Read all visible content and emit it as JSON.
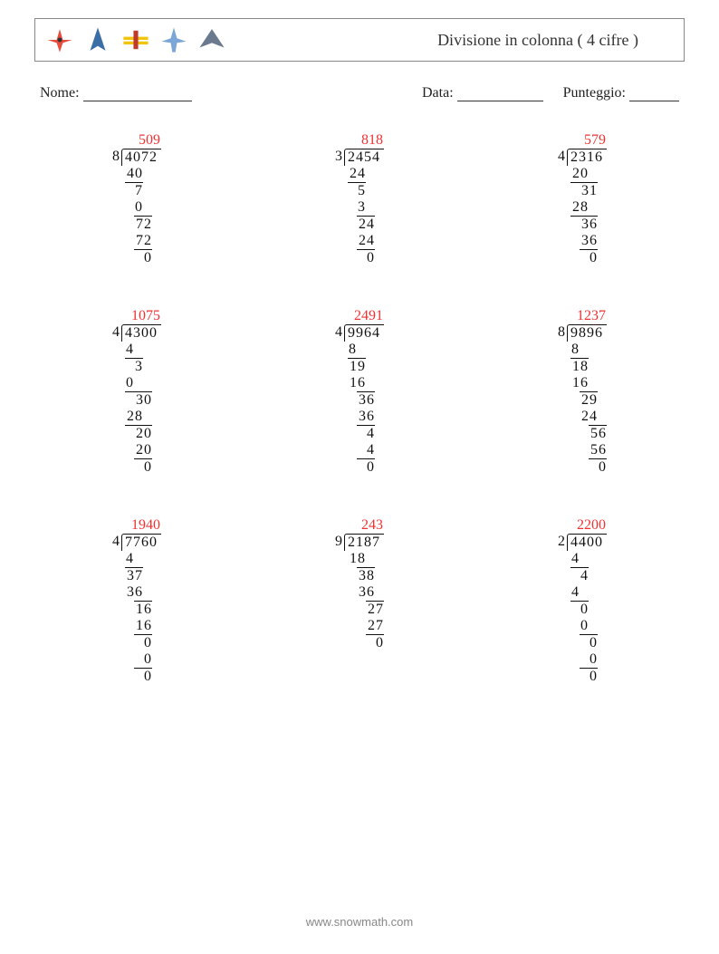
{
  "title": "Divisione in colonna ( 4 cifre )",
  "labels": {
    "name": "Nome:",
    "date": "Data:",
    "score": "Punteggio:"
  },
  "blanks": {
    "name_width": 120,
    "date_width": 95,
    "score_width": 55
  },
  "footer": "www.snowmath.com",
  "style": {
    "quotient_color": "#e33333",
    "text_color": "#111111",
    "border_color": "#888888",
    "font_size": 16,
    "line_height": 18,
    "digit_width": 10
  },
  "planes": [
    {
      "name": "plane-red-prop",
      "color": "#e74c3c"
    },
    {
      "name": "plane-blue-jet",
      "color": "#3b6ea5"
    },
    {
      "name": "plane-yellow-biplane",
      "color": "#f1c40f"
    },
    {
      "name": "plane-blue-airliner",
      "color": "#7aa6d8"
    },
    {
      "name": "plane-grey-stealth",
      "color": "#6b7a8f"
    }
  ],
  "problems": [
    {
      "divisor": "8",
      "dividend": "4072",
      "quotient": "509",
      "steps": [
        {
          "indent": 0,
          "text": "40",
          "underline": false
        },
        {
          "indent": 1,
          "text": "7",
          "underline": true,
          "uwidth": 2
        },
        {
          "indent": 1,
          "text": "0",
          "underline": false
        },
        {
          "indent": 1,
          "text": "72",
          "underline": true,
          "uwidth": 2
        },
        {
          "indent": 1,
          "text": "72",
          "underline": false
        },
        {
          "indent": 2,
          "text": "0",
          "underline": true,
          "uwidth": 2
        }
      ]
    },
    {
      "divisor": "3",
      "dividend": "2454",
      "quotient": "818",
      "steps": [
        {
          "indent": 0,
          "text": "24",
          "underline": false
        },
        {
          "indent": 1,
          "text": "5",
          "underline": true,
          "uwidth": 2
        },
        {
          "indent": 1,
          "text": "3",
          "underline": false
        },
        {
          "indent": 1,
          "text": "24",
          "underline": true,
          "uwidth": 2
        },
        {
          "indent": 1,
          "text": "24",
          "underline": false
        },
        {
          "indent": 2,
          "text": "0",
          "underline": true,
          "uwidth": 2
        }
      ]
    },
    {
      "divisor": "4",
      "dividend": "2316",
      "quotient": "579",
      "steps": [
        {
          "indent": 0,
          "text": "20",
          "underline": false
        },
        {
          "indent": 0,
          "text": "31",
          "underline": true,
          "uwidth": 3
        },
        {
          "indent": 0,
          "text": "28",
          "underline": false
        },
        {
          "indent": 1,
          "text": "36",
          "underline": true,
          "uwidth": 3
        },
        {
          "indent": 1,
          "text": "36",
          "underline": false
        },
        {
          "indent": 2,
          "text": "0",
          "underline": true,
          "uwidth": 2
        }
      ]
    },
    {
      "divisor": "4",
      "dividend": "4300",
      "quotient": "1075",
      "steps": [
        {
          "indent": 0,
          "text": "4",
          "underline": false
        },
        {
          "indent": 0,
          "text": "3",
          "underline": true,
          "uwidth": 2
        },
        {
          "indent": 0,
          "text": "0",
          "underline": false
        },
        {
          "indent": 0,
          "text": "30",
          "underline": true,
          "uwidth": 3
        },
        {
          "indent": 0,
          "text": "28",
          "underline": false
        },
        {
          "indent": 1,
          "text": "20",
          "underline": true,
          "uwidth": 3
        },
        {
          "indent": 1,
          "text": "20",
          "underline": false
        },
        {
          "indent": 2,
          "text": "0",
          "underline": true,
          "uwidth": 2
        }
      ]
    },
    {
      "divisor": "4",
      "dividend": "9964",
      "quotient": "2491",
      "steps": [
        {
          "indent": 0,
          "text": "8",
          "underline": false
        },
        {
          "indent": 0,
          "text": "19",
          "underline": true,
          "uwidth": 2
        },
        {
          "indent": 0,
          "text": "16",
          "underline": false
        },
        {
          "indent": 1,
          "text": "36",
          "underline": true,
          "uwidth": 2
        },
        {
          "indent": 1,
          "text": "36",
          "underline": false
        },
        {
          "indent": 2,
          "text": "4",
          "underline": true,
          "uwidth": 2
        },
        {
          "indent": 2,
          "text": "4",
          "underline": false
        },
        {
          "indent": 2,
          "text": "0",
          "underline": true,
          "uwidth": 2
        }
      ]
    },
    {
      "divisor": "8",
      "dividend": "9896",
      "quotient": "1237",
      "steps": [
        {
          "indent": 0,
          "text": "8",
          "underline": false
        },
        {
          "indent": 0,
          "text": "18",
          "underline": true,
          "uwidth": 2
        },
        {
          "indent": 0,
          "text": "16",
          "underline": false
        },
        {
          "indent": 1,
          "text": "29",
          "underline": true,
          "uwidth": 2
        },
        {
          "indent": 1,
          "text": "24",
          "underline": false
        },
        {
          "indent": 2,
          "text": "56",
          "underline": true,
          "uwidth": 2
        },
        {
          "indent": 2,
          "text": "56",
          "underline": false
        },
        {
          "indent": 3,
          "text": "0",
          "underline": true,
          "uwidth": 2
        }
      ]
    },
    {
      "divisor": "4",
      "dividend": "7760",
      "quotient": "1940",
      "steps": [
        {
          "indent": 0,
          "text": "4",
          "underline": false
        },
        {
          "indent": 0,
          "text": "37",
          "underline": true,
          "uwidth": 2
        },
        {
          "indent": 0,
          "text": "36",
          "underline": false
        },
        {
          "indent": 1,
          "text": "16",
          "underline": true,
          "uwidth": 2
        },
        {
          "indent": 1,
          "text": "16",
          "underline": false
        },
        {
          "indent": 2,
          "text": "0",
          "underline": true,
          "uwidth": 2
        },
        {
          "indent": 2,
          "text": "0",
          "underline": false
        },
        {
          "indent": 2,
          "text": "0",
          "underline": true,
          "uwidth": 2
        }
      ]
    },
    {
      "divisor": "9",
      "dividend": "2187",
      "quotient": "243",
      "steps": [
        {
          "indent": 0,
          "text": "18",
          "underline": false
        },
        {
          "indent": 1,
          "text": "38",
          "underline": true,
          "uwidth": 2
        },
        {
          "indent": 1,
          "text": "36",
          "underline": false
        },
        {
          "indent": 2,
          "text": "27",
          "underline": true,
          "uwidth": 2
        },
        {
          "indent": 2,
          "text": "27",
          "underline": false
        },
        {
          "indent": 3,
          "text": "0",
          "underline": true,
          "uwidth": 2
        }
      ]
    },
    {
      "divisor": "2",
      "dividend": "4400",
      "quotient": "2200",
      "steps": [
        {
          "indent": 0,
          "text": "4",
          "underline": false
        },
        {
          "indent": 0,
          "text": "4",
          "underline": true,
          "uwidth": 2
        },
        {
          "indent": 0,
          "text": "4",
          "underline": false
        },
        {
          "indent": 1,
          "text": "0",
          "underline": true,
          "uwidth": 2
        },
        {
          "indent": 1,
          "text": "0",
          "underline": false
        },
        {
          "indent": 2,
          "text": "0",
          "underline": true,
          "uwidth": 2
        },
        {
          "indent": 2,
          "text": "0",
          "underline": false
        },
        {
          "indent": 2,
          "text": "0",
          "underline": true,
          "uwidth": 2
        }
      ]
    }
  ]
}
